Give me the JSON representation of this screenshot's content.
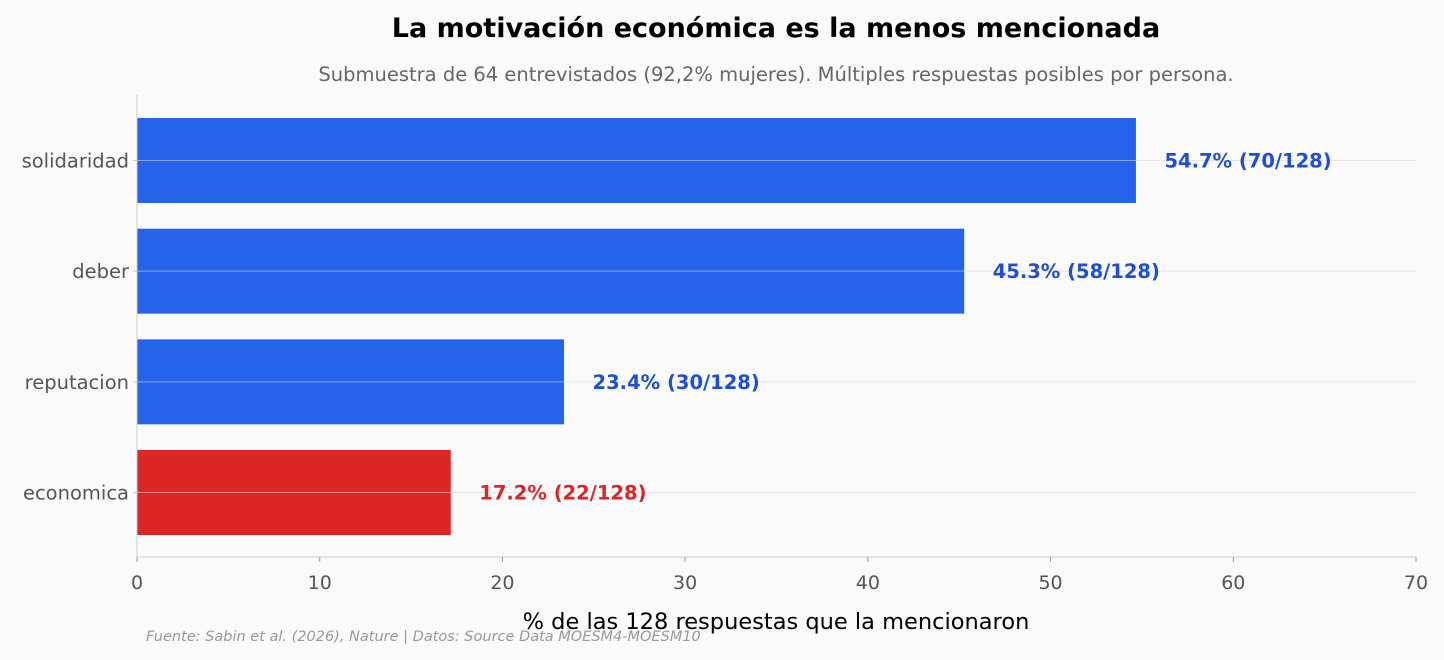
{
  "chart_data": {
    "type": "bar",
    "orientation": "horizontal",
    "title": "La motivación económica es la menos mencionada",
    "subtitle": "Submuestra de 64 entrevistados (92,2% mujeres). Múltiples respuestas posibles por persona.",
    "xlabel": "% de las 128 respuestas que la mencionaron",
    "ylabel": "",
    "footer": "Fuente: Sabin et al. (2026), Nature | Datos: Source Data MOESM4-MOESM10",
    "categories": [
      "solidaridad",
      "deber",
      "reputacion",
      "economica"
    ],
    "values": [
      54.7,
      45.3,
      23.4,
      17.2
    ],
    "counts": [
      70,
      58,
      30,
      22
    ],
    "total": 128,
    "data_labels": [
      "54.7% (70/128)",
      "45.3% (58/128)",
      "23.4% (30/128)",
      "17.2% (22/128)"
    ],
    "bar_colors": [
      "#2563eb",
      "#2563eb",
      "#2563eb",
      "#dc2626"
    ],
    "label_colors": [
      "#1d4ed8",
      "#1d4ed8",
      "#1d4ed8",
      "#dc2626"
    ],
    "xlim": [
      0,
      70
    ],
    "xticks": [
      "0",
      "10",
      "20",
      "30",
      "40",
      "50",
      "60",
      "70"
    ],
    "grid": "horizontal, at categories",
    "legend": "none"
  }
}
